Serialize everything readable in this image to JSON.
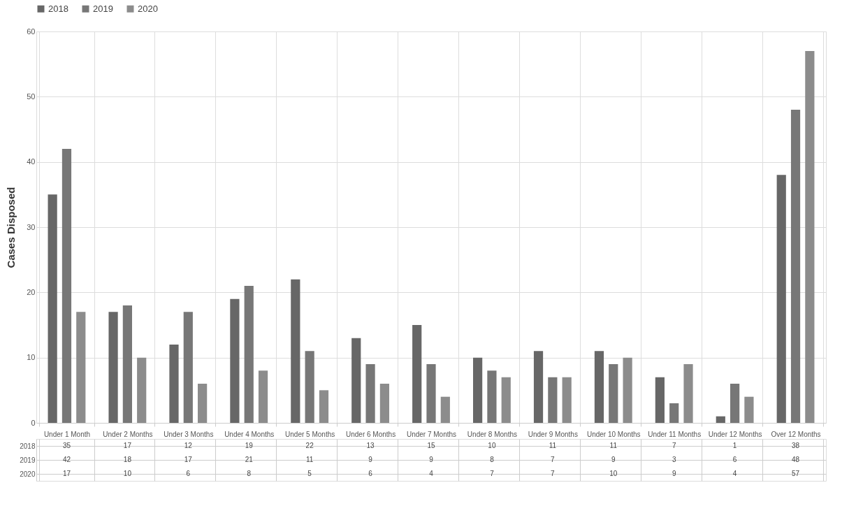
{
  "chart_data": {
    "type": "bar",
    "ylabel": "Cases Disposed",
    "categories": [
      "Under 1 Month",
      "Under 2 Months",
      "Under 3 Months",
      "Under 4 Months",
      "Under 5 Months",
      "Under 6 Months",
      "Under 7 Months",
      "Under 8 Months",
      "Under 9 Months",
      "Under 10 Months",
      "Under 11 Months",
      "Under 12 Months",
      "Over 12 Months"
    ],
    "series": [
      {
        "name": "2018",
        "color": "#676767",
        "values": [
          35,
          17,
          12,
          19,
          22,
          13,
          15,
          10,
          11,
          11,
          7,
          1,
          38
        ]
      },
      {
        "name": "2019",
        "color": "#777777",
        "values": [
          42,
          18,
          17,
          21,
          11,
          9,
          9,
          8,
          7,
          9,
          3,
          6,
          48
        ]
      },
      {
        "name": "2020",
        "color": "#8c8c8c",
        "values": [
          17,
          10,
          6,
          8,
          5,
          6,
          4,
          7,
          7,
          10,
          9,
          4,
          57
        ]
      }
    ],
    "ylim": [
      0,
      60
    ],
    "yticks": [
      0,
      10,
      20,
      30,
      40,
      50,
      60
    ],
    "grid": true,
    "legend": "top",
    "data_labels": true
  }
}
